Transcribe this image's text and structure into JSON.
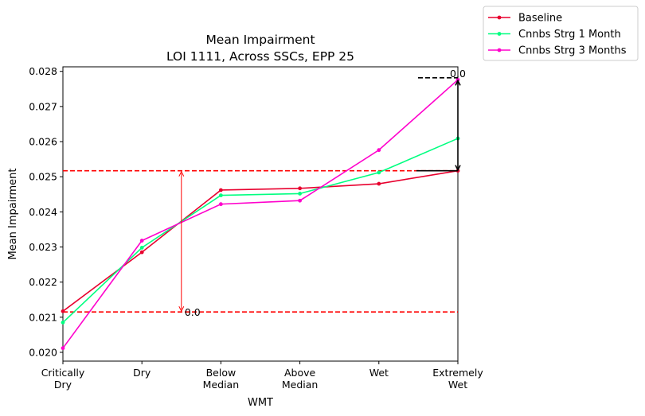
{
  "chart_data": {
    "type": "line",
    "title": "Mean Impairment",
    "subtitle": "LOI 1111, Across SSCs, EPP 25",
    "xlabel": "WMT",
    "ylabel": "Mean Impairment",
    "categories": [
      [
        "Critically",
        "Dry"
      ],
      [
        "Dry"
      ],
      [
        "Below",
        "Median"
      ],
      [
        "Above",
        "Median"
      ],
      [
        "Wet"
      ],
      [
        "Extremely",
        "Wet"
      ]
    ],
    "ylim": [
      0.01975,
      0.02813
    ],
    "yticks": [
      "0.020",
      "0.021",
      "0.022",
      "0.023",
      "0.024",
      "0.025",
      "0.026",
      "0.027",
      "0.028"
    ],
    "series": [
      {
        "name": "Baseline",
        "color": "#e8002e",
        "values": [
          0.02117,
          0.02285,
          0.02462,
          0.02467,
          0.0248,
          0.02517
        ]
      },
      {
        "name": "Cnnbs Strg 1 Month",
        "color": "#00ff80",
        "values": [
          0.02085,
          0.02298,
          0.02447,
          0.02452,
          0.02512,
          0.02609
        ]
      },
      {
        "name": "Cnnbs Strg 3 Months",
        "color": "#ff00cc",
        "values": [
          0.02012,
          0.02318,
          0.02422,
          0.02432,
          0.02576,
          0.02776
        ]
      }
    ],
    "reference_lines": [
      {
        "y": 0.02517,
        "color": "#ff0000",
        "style": "dashed"
      },
      {
        "y": 0.02115,
        "color": "#ff0000",
        "style": "dashed"
      }
    ],
    "annotations": [
      {
        "text": "0.0",
        "color": "#ff0000",
        "x_category": 1.5,
        "y_from": 0.02517,
        "y_to": 0.02115
      },
      {
        "text": "0.0",
        "color": "#000000",
        "x_category": 5,
        "y_from": 0.02776,
        "y_to": 0.02517
      }
    ],
    "legend_position": "upper-right-outside",
    "grid": false
  }
}
